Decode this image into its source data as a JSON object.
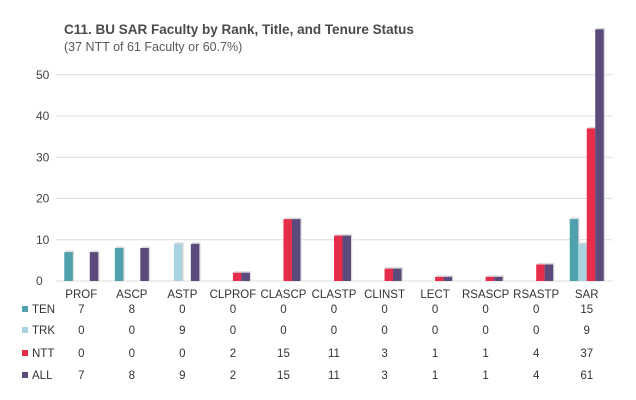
{
  "title": "C11. BU SAR Faculty by Rank, Title, and Tenure Status",
  "subtitle": "(37 NTT of 61 Faculty or 60.7%)",
  "chart_data": {
    "type": "bar",
    "title": "C11. BU SAR Faculty by Rank, Title, and Tenure Status",
    "subtitle": "(37 NTT of 61 Faculty or 60.7%)",
    "categories": [
      "PROF",
      "ASCP",
      "ASTP",
      "CLPROF",
      "CLASCP",
      "CLASTP",
      "CLINST",
      "LECT",
      "RSASCP",
      "RSASTP",
      "SAR"
    ],
    "series": [
      {
        "name": "TEN",
        "color": "#4fa1ae",
        "values": [
          7,
          8,
          0,
          0,
          0,
          0,
          0,
          0,
          0,
          0,
          15
        ]
      },
      {
        "name": "TRK",
        "color": "#a9d3df",
        "values": [
          0,
          0,
          9,
          0,
          0,
          0,
          0,
          0,
          0,
          0,
          9
        ]
      },
      {
        "name": "NTT",
        "color": "#e62e4b",
        "values": [
          0,
          0,
          0,
          2,
          15,
          11,
          3,
          1,
          1,
          4,
          37
        ]
      },
      {
        "name": "ALL",
        "color": "#5c4a7c",
        "values": [
          7,
          8,
          9,
          2,
          15,
          11,
          3,
          1,
          1,
          4,
          61
        ]
      }
    ],
    "y_ticks": [
      0,
      10,
      20,
      30,
      40,
      50
    ],
    "ylim": [
      0,
      56
    ],
    "grid": true,
    "legend": "table-below",
    "data_table": true
  }
}
